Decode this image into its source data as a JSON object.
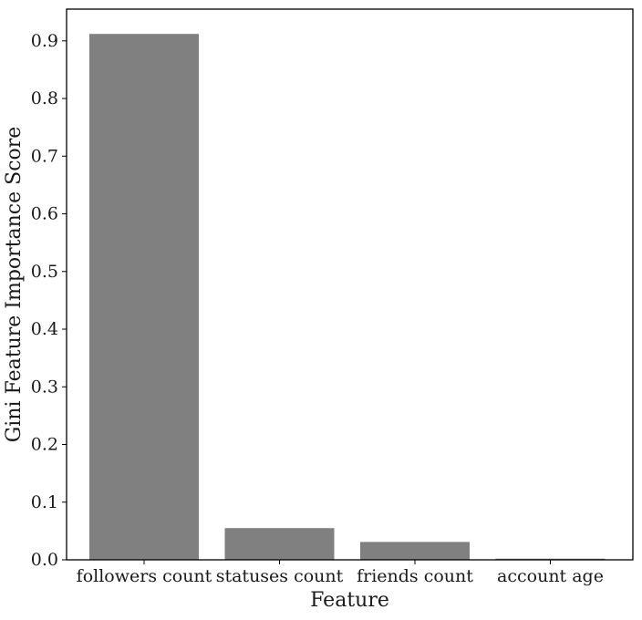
{
  "chart_data": {
    "type": "bar",
    "title": "",
    "xlabel": "Feature",
    "ylabel": "Gini Feature Importance Score",
    "categories": [
      "followers count",
      "statuses count",
      "friends count",
      "account age"
    ],
    "values": [
      0.912,
      0.055,
      0.031,
      0.002
    ],
    "ylim": [
      0,
      0.955
    ],
    "yticks": [
      "0.0",
      "0.1",
      "0.2",
      "0.3",
      "0.4",
      "0.5",
      "0.6",
      "0.7",
      "0.8",
      "0.9"
    ],
    "bar_color": "#808080",
    "grid": false,
    "legend": "none"
  }
}
